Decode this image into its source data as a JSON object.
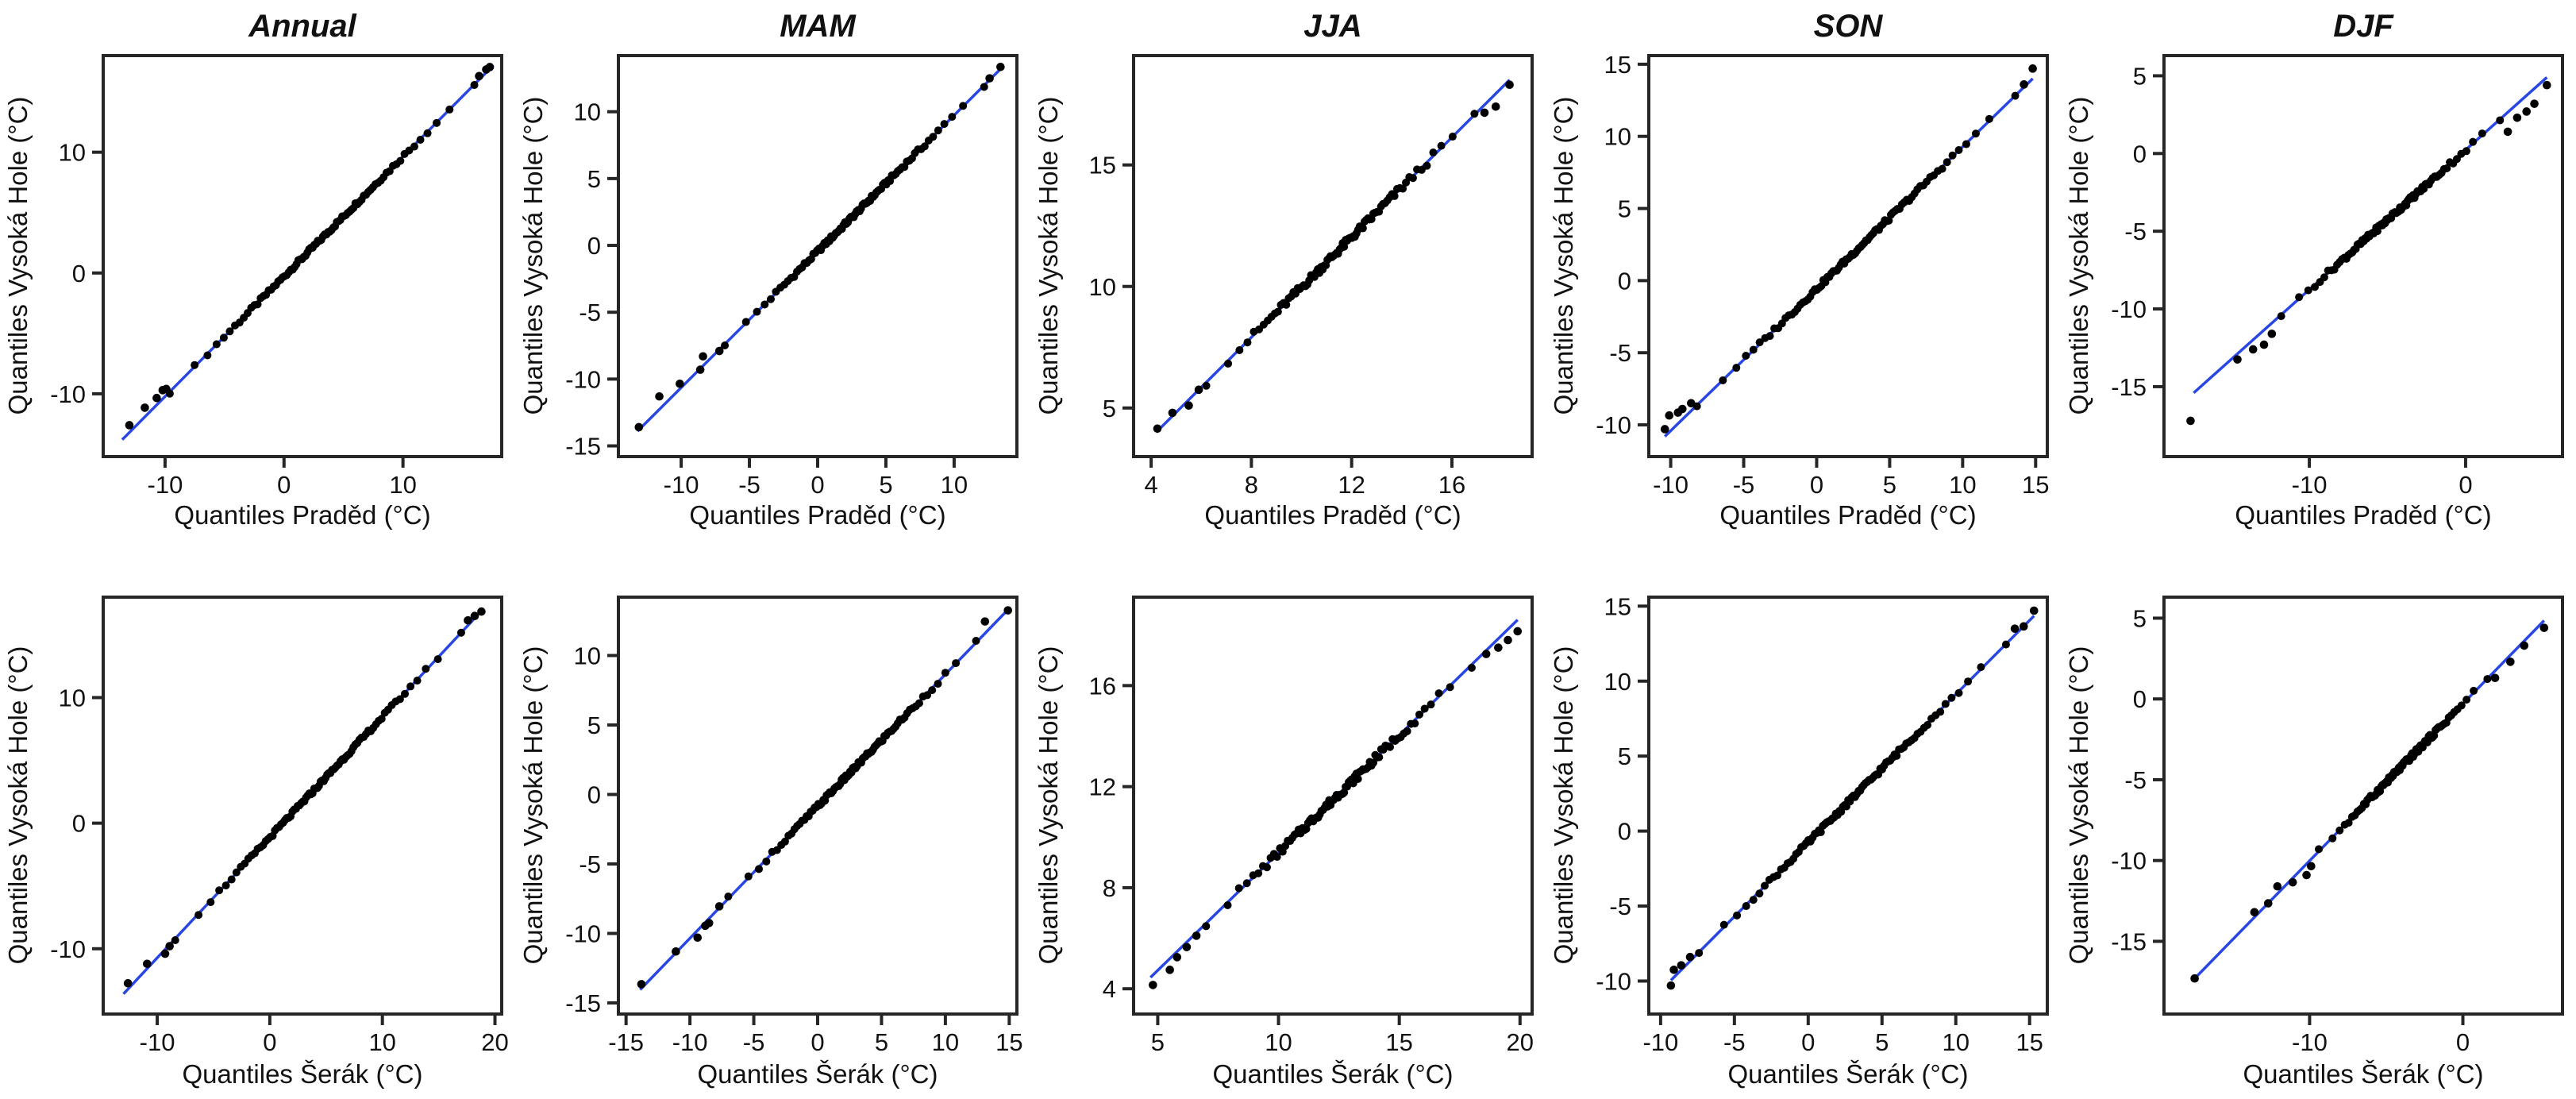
{
  "figure": {
    "columns": [
      "Annual",
      "MAM",
      "JJA",
      "SON",
      "DJF"
    ],
    "ylabel_shared": "Quantiles Vysoká Hole (°C)",
    "xlabel_row1": "Quantiles Praděd (°C)",
    "xlabel_row2": "Quantiles Šerák (°C)",
    "colors": {
      "point": "#000000",
      "line": "#2846e4",
      "border": "#262626",
      "background": "#ffffff"
    }
  },
  "chart_data": [
    {
      "id": "annual-praded",
      "type": "scatter",
      "row": 1,
      "title": "Annual",
      "xlabel": "Quantiles Praděd (°C)",
      "ylabel": "Quantiles Vysoká Hole (°C)",
      "xlim": [
        -15.2,
        18.3
      ],
      "ylim": [
        -15.2,
        18.0
      ],
      "xticks": [
        -10,
        0,
        10
      ],
      "yticks": [
        -10,
        0,
        10
      ],
      "grid": false,
      "line": [
        [
          -13.6,
          -13.8
        ],
        [
          17.6,
          17.2
        ]
      ],
      "points_spread": [
        -9.6,
        16.0
      ],
      "n_points": 88,
      "wiggle": 0.16,
      "outliers": [
        [
          -13,
          -12.6
        ],
        [
          -11.7,
          -11.15
        ],
        [
          -10.7,
          -10.35
        ],
        [
          -10.2,
          -9.7
        ],
        [
          -9.9,
          -9.6
        ],
        [
          16.4,
          16.3
        ],
        [
          17.0,
          16.85
        ],
        [
          17.3,
          17.05
        ]
      ]
    },
    {
      "id": "mam-praded",
      "type": "scatter",
      "row": 1,
      "title": "MAM",
      "xlabel": "Quantiles Praděd (°C)",
      "ylabel": "Quantiles Vysoká Hole (°C)",
      "xlim": [
        -14.6,
        14.6
      ],
      "ylim": [
        -15.8,
        14.2
      ],
      "xticks": [
        -10,
        -5,
        0,
        5,
        10
      ],
      "yticks": [
        -15,
        -10,
        -5,
        0,
        5,
        10
      ],
      "grid": false,
      "line": [
        [
          -13.2,
          -13.9
        ],
        [
          13.5,
          13.3
        ]
      ],
      "points_spread": [
        -6.8,
        12.2
      ],
      "n_points": 88,
      "wiggle": 0.16,
      "outliers": [
        [
          -13.1,
          -13.6
        ],
        [
          -11.6,
          -11.3
        ],
        [
          -10.1,
          -10.35
        ],
        [
          -8.6,
          -9.3
        ],
        [
          -8.4,
          -8.3
        ],
        [
          -7.2,
          -7.9
        ],
        [
          12.6,
          12.5
        ],
        [
          13.4,
          13.35
        ]
      ]
    },
    {
      "id": "jja-praded",
      "type": "scatter",
      "row": 1,
      "title": "JJA",
      "xlabel": "Quantiles Praděd (°C)",
      "ylabel": "Quantiles Vysoká Hole (°C)",
      "xlim": [
        3.3,
        19.2
      ],
      "ylim": [
        3.0,
        19.5
      ],
      "xticks": [
        4,
        8,
        12,
        16
      ],
      "yticks": [
        5,
        10,
        15
      ],
      "grid": false,
      "line": [
        [
          4.2,
          4.0
        ],
        [
          18.3,
          18.5
        ]
      ],
      "points_spread": [
        6.2,
        16.9
      ],
      "n_points": 88,
      "wiggle": 0.15,
      "outliers": [
        [
          4.25,
          4.15
        ],
        [
          4.85,
          4.8
        ],
        [
          5.5,
          5.1
        ],
        [
          5.9,
          5.75
        ],
        [
          17.3,
          17.15
        ],
        [
          17.75,
          17.4
        ],
        [
          18.3,
          18.3
        ]
      ]
    },
    {
      "id": "son-praded",
      "type": "scatter",
      "row": 1,
      "title": "SON",
      "xlabel": "Quantiles Praděd (°C)",
      "ylabel": "Quantiles Vysoká Hole (°C)",
      "xlim": [
        -11.5,
        15.8
      ],
      "ylim": [
        -12.2,
        15.6
      ],
      "xticks": [
        -10,
        -5,
        0,
        5,
        10,
        15
      ],
      "yticks": [
        -10,
        -5,
        0,
        5,
        10,
        15
      ],
      "grid": false,
      "line": [
        [
          -10.4,
          -10.8
        ],
        [
          14.8,
          14.0
        ]
      ],
      "points_spread": [
        -8.2,
        13.6
      ],
      "n_points": 88,
      "wiggle": 0.16,
      "outliers": [
        [
          -10.4,
          -10.3
        ],
        [
          -10.1,
          -9.35
        ],
        [
          -9.5,
          -9.15
        ],
        [
          -9.2,
          -8.9
        ],
        [
          -8.6,
          -8.5
        ],
        [
          14.2,
          13.6
        ],
        [
          14.8,
          14.7
        ]
      ]
    },
    {
      "id": "djf-praded",
      "type": "scatter",
      "row": 1,
      "title": "DJF",
      "xlabel": "Quantiles Praděd (°C)",
      "ylabel": "Quantiles Vysoká Hole (°C)",
      "xlim": [
        -19.3,
        6.2
      ],
      "ylim": [
        -19.5,
        6.3
      ],
      "xticks": [
        -10,
        0
      ],
      "yticks": [
        -15,
        -10,
        -5,
        0,
        5
      ],
      "grid": false,
      "line": [
        [
          -17.4,
          -15.4
        ],
        [
          5.2,
          4.9
        ]
      ],
      "points_spread": [
        -11.8,
        2.2
      ],
      "n_points": 88,
      "wiggle": 0.16,
      "outliers": [
        [
          -17.6,
          -17.2
        ],
        [
          -14.6,
          -13.25
        ],
        [
          -13.6,
          -12.6
        ],
        [
          -12.9,
          -12.3
        ],
        [
          -12.4,
          -11.6
        ],
        [
          2.7,
          1.4
        ],
        [
          3.3,
          2.3
        ],
        [
          3.9,
          2.7
        ],
        [
          4.4,
          3.2
        ],
        [
          5.2,
          4.4
        ]
      ]
    },
    {
      "id": "annual-serak",
      "type": "scatter",
      "row": 2,
      "title": "",
      "xlabel": "Quantiles Šerák (°C)",
      "ylabel": "Quantiles Vysoká Hole (°C)",
      "xlim": [
        -14.8,
        20.6
      ],
      "ylim": [
        -15.2,
        18.0
      ],
      "xticks": [
        -10,
        0,
        10,
        20
      ],
      "yticks": [
        -10,
        0,
        10
      ],
      "grid": false,
      "line": [
        [
          -13.0,
          -13.6
        ],
        [
          18.8,
          16.9
        ]
      ],
      "points_spread": [
        -8.4,
        17.0
      ],
      "n_points": 88,
      "wiggle": 0.15,
      "outliers": [
        [
          -12.6,
          -12.75
        ],
        [
          -10.9,
          -11.2
        ],
        [
          -9.3,
          -10.4
        ],
        [
          -8.9,
          -9.8
        ],
        [
          17.6,
          16.15
        ],
        [
          18.2,
          16.5
        ],
        [
          18.8,
          16.85
        ]
      ]
    },
    {
      "id": "mam-serak",
      "type": "scatter",
      "row": 2,
      "title": "",
      "xlabel": "Quantiles Šerák (°C)",
      "ylabel": "Quantiles Vysoká Hole (°C)",
      "xlim": [
        -15.6,
        15.6
      ],
      "ylim": [
        -15.8,
        14.2
      ],
      "xticks": [
        -15,
        -10,
        -5,
        0,
        5,
        10,
        15
      ],
      "yticks": [
        -15,
        -10,
        -5,
        0,
        5,
        10
      ],
      "grid": false,
      "line": [
        [
          -13.9,
          -14.05
        ],
        [
          14.9,
          13.3
        ]
      ],
      "points_spread": [
        -7.0,
        12.4
      ],
      "n_points": 88,
      "wiggle": 0.16,
      "outliers": [
        [
          -13.8,
          -13.65
        ],
        [
          -11.1,
          -11.3
        ],
        [
          -9.4,
          -10.3
        ],
        [
          -8.8,
          -9.45
        ],
        [
          -8.5,
          -9.25
        ],
        [
          -7.7,
          -8.05
        ],
        [
          13.1,
          12.45
        ],
        [
          14.9,
          13.25
        ]
      ]
    },
    {
      "id": "jja-serak",
      "type": "scatter",
      "row": 2,
      "title": "",
      "xlabel": "Quantiles Šerák (°C)",
      "ylabel": "Quantiles Vysoká Hole (°C)",
      "xlim": [
        4.0,
        20.5
      ],
      "ylim": [
        3.0,
        19.5
      ],
      "xticks": [
        5,
        10,
        15,
        20
      ],
      "yticks": [
        4,
        8,
        12,
        16
      ],
      "grid": false,
      "line": [
        [
          4.7,
          4.45
        ],
        [
          19.9,
          18.6
        ]
      ],
      "points_spread": [
        7.0,
        18.0
      ],
      "n_points": 88,
      "wiggle": 0.15,
      "outliers": [
        [
          4.8,
          4.15
        ],
        [
          5.5,
          4.75
        ],
        [
          5.8,
          5.25
        ],
        [
          6.2,
          5.65
        ],
        [
          6.6,
          6.1
        ],
        [
          18.6,
          17.25
        ],
        [
          19.1,
          17.5
        ],
        [
          19.5,
          17.8
        ],
        [
          19.9,
          18.15
        ]
      ]
    },
    {
      "id": "son-serak",
      "type": "scatter",
      "row": 2,
      "title": "",
      "xlabel": "Quantiles Šerák (°C)",
      "ylabel": "Quantiles Vysoká Hole (°C)",
      "xlim": [
        -10.8,
        16.2
      ],
      "ylim": [
        -12.2,
        15.6
      ],
      "xticks": [
        -10,
        -5,
        0,
        5,
        10,
        15
      ],
      "yticks": [
        -10,
        -5,
        0,
        5,
        10,
        15
      ],
      "grid": false,
      "line": [
        [
          -9.3,
          -9.95
        ],
        [
          15.3,
          14.35
        ]
      ],
      "points_spread": [
        -7.4,
        13.4
      ],
      "n_points": 88,
      "wiggle": 0.16,
      "outliers": [
        [
          -9.3,
          -10.3
        ],
        [
          -9.1,
          -9.25
        ],
        [
          -8.6,
          -8.95
        ],
        [
          -8.0,
          -8.4
        ],
        [
          14.0,
          13.5
        ],
        [
          14.6,
          13.65
        ],
        [
          15.3,
          14.7
        ]
      ]
    },
    {
      "id": "djf-serak",
      "type": "scatter",
      "row": 2,
      "title": "",
      "xlabel": "Quantiles Šerák (°C)",
      "ylabel": "Quantiles Vysoká Hole (°C)",
      "xlim": [
        -19.5,
        6.5
      ],
      "ylim": [
        -19.5,
        6.3
      ],
      "xticks": [
        -10,
        0
      ],
      "yticks": [
        -15,
        -10,
        -5,
        0,
        5
      ],
      "grid": false,
      "line": [
        [
          -17.5,
          -17.3
        ],
        [
          5.3,
          4.85
        ]
      ],
      "points_spread": [
        -9.4,
        1.6
      ],
      "n_points": 88,
      "wiggle": 0.16,
      "outliers": [
        [
          -17.5,
          -17.3
        ],
        [
          -13.6,
          -13.2
        ],
        [
          -12.7,
          -12.65
        ],
        [
          -12.1,
          -11.6
        ],
        [
          -11.1,
          -11.35
        ],
        [
          -10.2,
          -10.9
        ],
        [
          -9.9,
          -10.35
        ],
        [
          2.1,
          1.3
        ],
        [
          3.1,
          2.3
        ],
        [
          4.0,
          3.3
        ],
        [
          5.3,
          4.4
        ]
      ]
    }
  ]
}
